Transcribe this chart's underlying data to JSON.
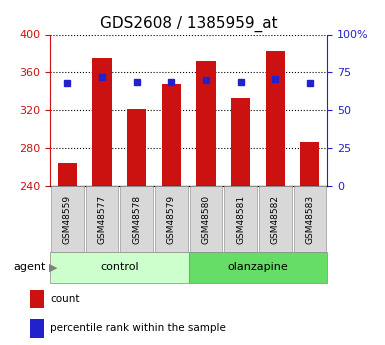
{
  "title": "GDS2608 / 1385959_at",
  "categories": [
    "GSM48559",
    "GSM48577",
    "GSM48578",
    "GSM48579",
    "GSM48580",
    "GSM48581",
    "GSM48582",
    "GSM48583"
  ],
  "bar_values": [
    265,
    375,
    322,
    348,
    372,
    333,
    383,
    287
  ],
  "percentile_values": [
    68,
    72,
    69,
    69,
    70,
    69,
    71,
    68
  ],
  "ylim_left": [
    240,
    400
  ],
  "ylim_right": [
    0,
    100
  ],
  "yticks_left": [
    240,
    280,
    320,
    360,
    400
  ],
  "yticks_right": [
    0,
    25,
    50,
    75,
    100
  ],
  "bar_color": "#cc1111",
  "marker_color": "#2222cc",
  "bar_bottom": 240,
  "groups": [
    {
      "label": "control",
      "start": 0,
      "end": 4,
      "color": "#ccffcc"
    },
    {
      "label": "olanzapine",
      "start": 4,
      "end": 8,
      "color": "#66dd66"
    }
  ],
  "agent_label": "agent",
  "legend_items": [
    {
      "label": "count",
      "color": "#cc1111"
    },
    {
      "label": "percentile rank within the sample",
      "color": "#2222cc"
    }
  ],
  "title_fontsize": 11,
  "tick_fontsize": 8,
  "left_axis_color": "#cc1111",
  "right_axis_color": "#2222cc",
  "fig_width": 3.85,
  "fig_height": 3.45,
  "fig_dpi": 100
}
